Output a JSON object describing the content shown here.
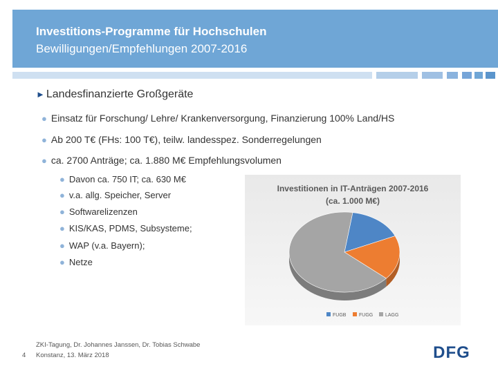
{
  "header": {
    "title": "Investitions-Programme für Hochschulen",
    "subtitle": "Bewilligungen/Empfehlungen 2007-2016",
    "background_color": "#6fa6d6"
  },
  "content": {
    "section_title": "Landesfinanzierte Großgeräte",
    "bullets": [
      "Einsatz für Forschung/ Lehre/ Krankenversorgung, Finanzierung 100% Land/HS",
      "Ab 200 T€ (FHs: 100 T€), teilw. landesspez. Sonderregelungen",
      "ca. 2700 Anträge; ca. 1.880 M€ Empfehlungsvolumen"
    ],
    "sub_bullets": [
      "Davon ca. 750 IT; ca. 630 M€",
      "v.a. allg. Speicher, Server",
      "Softwarelizenzen",
      "KIS/KAS, PDMS, Subsysteme;",
      "WAP (v.a. Bayern);",
      "Netze"
    ]
  },
  "chart_data": {
    "type": "pie",
    "title": "Investitionen in IT-Anträgen 2007-2016",
    "subtitle": "(ca. 1.000 M€)",
    "categories": [
      "FUGB",
      "FUGG",
      "LAGG"
    ],
    "values": [
      16,
      18,
      66
    ],
    "colors": [
      "#4e86c6",
      "#ed7d31",
      "#a5a5a5"
    ],
    "legend_position": "bottom"
  },
  "footer": {
    "names": "ZKI-Tagung, Dr. Johannes Janssen, Dr. Tobias Schwabe",
    "place_date": "Konstanz, 13. März 2018",
    "page_number": "4",
    "logo_text": "DFG"
  }
}
